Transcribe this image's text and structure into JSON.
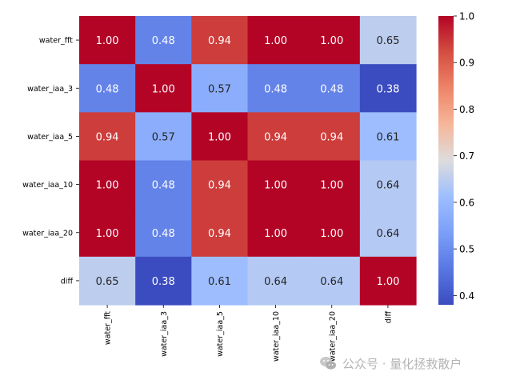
{
  "chart_data": {
    "type": "heatmap",
    "title": "",
    "xlabel": "",
    "ylabel": "",
    "row_labels": [
      "water_fft",
      "water_iaa_3",
      "water_iaa_5",
      "water_iaa_10",
      "water_iaa_20",
      "diff"
    ],
    "col_labels": [
      "water_fft",
      "water_iaa_3",
      "water_iaa_5",
      "water_iaa_10",
      "water_iaa_20",
      "diff"
    ],
    "values": [
      [
        1.0,
        0.48,
        0.94,
        1.0,
        1.0,
        0.65
      ],
      [
        0.48,
        1.0,
        0.57,
        0.48,
        0.48,
        0.38
      ],
      [
        0.94,
        0.57,
        1.0,
        0.94,
        0.94,
        0.61
      ],
      [
        1.0,
        0.48,
        0.94,
        1.0,
        1.0,
        0.64
      ],
      [
        1.0,
        0.48,
        0.94,
        1.0,
        1.0,
        0.64
      ],
      [
        0.65,
        0.38,
        0.61,
        0.64,
        0.64,
        1.0
      ]
    ],
    "annotation_format": "0.00",
    "colormap": "coolwarm",
    "colorbar": {
      "vmin": 0.38,
      "vmax": 1.0,
      "ticks": [
        0.4,
        0.5,
        0.6,
        0.7,
        0.8,
        0.9,
        1.0
      ],
      "tick_labels": [
        "0.4",
        "0.5",
        "0.6",
        "0.7",
        "0.8",
        "0.9",
        "1.0"
      ]
    }
  },
  "watermark": {
    "text": "公众号 · 量化拯救散户",
    "icon": "wechat-icon"
  }
}
